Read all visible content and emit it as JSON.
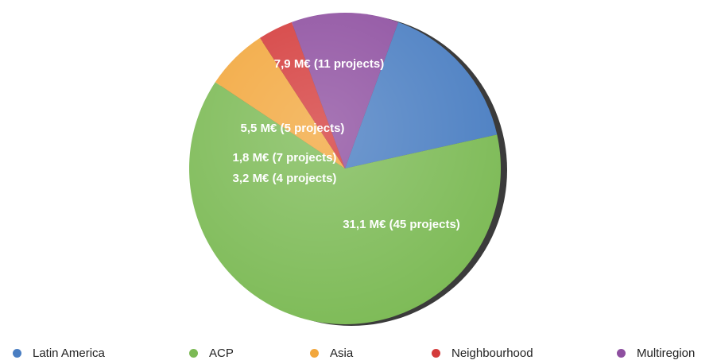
{
  "chart_data": {
    "type": "pie",
    "title": "",
    "slices": [
      {
        "name": "Latin America",
        "value": 7.9,
        "label": "7,9 M€ (11 projects)",
        "color": "#4A7EC2"
      },
      {
        "name": "ACP",
        "value": 31.1,
        "label": "31,1 M€ (45 projects)",
        "color": "#7CBA55"
      },
      {
        "name": "Asia",
        "value": 3.2,
        "label": "3,2 M€ (4 projects)",
        "color": "#F2A73D"
      },
      {
        "name": "Neighbourhood",
        "value": 1.8,
        "label": "1,8 M€ (7 projects)",
        "color": "#D43B3B"
      },
      {
        "name": "Multiregion",
        "value": 5.5,
        "label": "5,5 M€ (5 projects)",
        "color": "#8E4FA0"
      }
    ],
    "legend_position": "bottom"
  }
}
